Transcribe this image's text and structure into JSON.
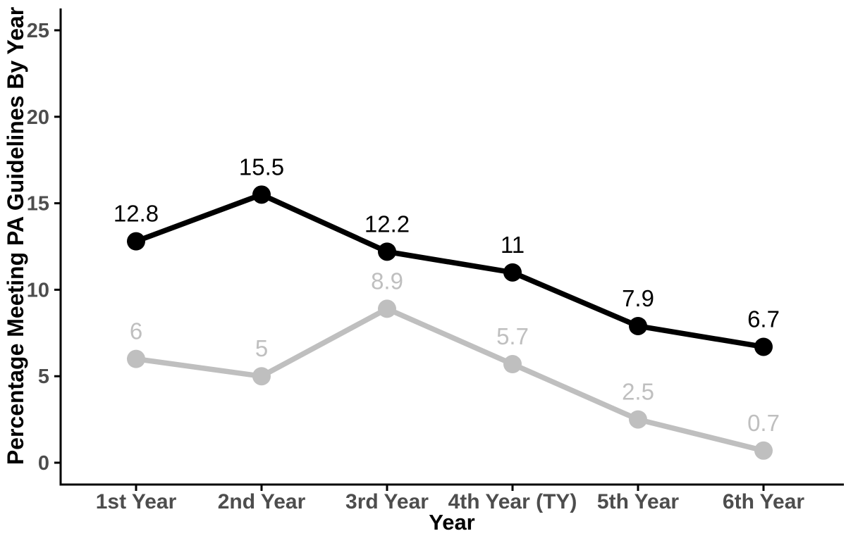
{
  "chart_data": {
    "type": "line",
    "title": "",
    "xlabel": "Year",
    "ylabel": "Percentage Meeting PA Guidelines By Year",
    "categories": [
      "1st Year",
      "2nd Year",
      "3rd Year",
      "4th Year (TY)",
      "5th Year",
      "6th Year"
    ],
    "series": [
      {
        "name": "dark-series",
        "color": "#000000",
        "values": [
          12.8,
          15.5,
          12.2,
          11,
          7.9,
          6.7
        ],
        "labels": [
          "12.8",
          "15.5",
          "12.2",
          "11",
          "7.9",
          "6.7"
        ]
      },
      {
        "name": "gray-series",
        "color": "#bfbfbf",
        "values": [
          6,
          5,
          8.9,
          5.7,
          2.5,
          0.7
        ],
        "labels": [
          "6",
          "5",
          "8.9",
          "5.7",
          "2.5",
          "0.7"
        ]
      }
    ],
    "y_ticks": [
      0,
      5,
      10,
      15,
      20,
      25
    ],
    "ylim": [
      0,
      26.3
    ],
    "grid": false,
    "legend_position": "none",
    "background_color": "#ffffff",
    "axis_line_color": "#000000",
    "axis_text_color": "#4d4d4d",
    "axis_title_color": "#000000"
  }
}
